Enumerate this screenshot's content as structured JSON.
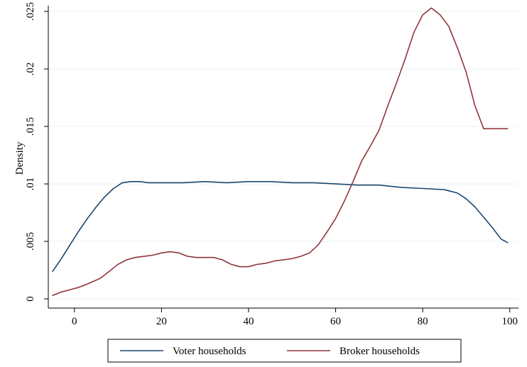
{
  "chart_data": {
    "type": "line",
    "title": "",
    "xlabel": "",
    "ylabel": "Density",
    "xlim": [
      -6,
      102
    ],
    "ylim": [
      -0.0008,
      0.0255
    ],
    "xticks": [
      0,
      20,
      40,
      60,
      80,
      100
    ],
    "xtick_labels": [
      "0",
      "20",
      "40",
      "60",
      "80",
      "100"
    ],
    "yticks": [
      0,
      0.005,
      0.01,
      0.015,
      0.02,
      0.025
    ],
    "ytick_labels": [
      "0",
      ".005",
      ".01",
      ".015",
      ".02",
      ".025"
    ],
    "grid": true,
    "legend_position": "bottom",
    "series": [
      {
        "name": "Voter households",
        "color": "#1a476f",
        "x": [
          -5,
          -3,
          -1,
          1,
          3,
          5,
          7,
          9,
          11,
          13,
          15,
          17,
          19,
          21,
          25,
          30,
          35,
          40,
          45,
          50,
          55,
          60,
          65,
          70,
          75,
          80,
          85,
          88,
          90,
          92,
          94,
          96,
          98,
          99.5
        ],
        "y": [
          0.0024,
          0.0035,
          0.0047,
          0.0059,
          0.007,
          0.008,
          0.0089,
          0.0096,
          0.0101,
          0.0102,
          0.0102,
          0.0101,
          0.0101,
          0.0101,
          0.0101,
          0.0102,
          0.0101,
          0.0102,
          0.0102,
          0.0101,
          0.0101,
          0.01,
          0.0099,
          0.0099,
          0.0097,
          0.0096,
          0.0095,
          0.0092,
          0.0087,
          0.008,
          0.0071,
          0.0062,
          0.0052,
          0.0049
        ]
      },
      {
        "name": "Broker households",
        "color": "#90353b",
        "x": [
          -5,
          -3,
          -1,
          1,
          3,
          6,
          8,
          10,
          12,
          14,
          16,
          18,
          20,
          22,
          24,
          26,
          28,
          30,
          32,
          34,
          36,
          38,
          40,
          42,
          44,
          46,
          48,
          50,
          52,
          54,
          56,
          58,
          60,
          62,
          64,
          66,
          68,
          70,
          72,
          74,
          76,
          78,
          80,
          82,
          84,
          86,
          88,
          90,
          92,
          94,
          96,
          98,
          99.5
        ],
        "y": [
          0.0003,
          0.0006,
          0.0008,
          0.001,
          0.0013,
          0.0018,
          0.0024,
          0.003,
          0.0034,
          0.0036,
          0.0037,
          0.0038,
          0.004,
          0.0041,
          0.004,
          0.0037,
          0.0036,
          0.0036,
          0.0036,
          0.0034,
          0.003,
          0.0028,
          0.0028,
          0.003,
          0.0031,
          0.0033,
          0.0034,
          0.0035,
          0.0037,
          0.004,
          0.0047,
          0.0058,
          0.007,
          0.0085,
          0.0102,
          0.012,
          0.0133,
          0.0147,
          0.0168,
          0.0188,
          0.0209,
          0.0232,
          0.0247,
          0.0253,
          0.0247,
          0.0237,
          0.0218,
          0.0197,
          0.0168,
          0.0148,
          0.0148,
          0.0148,
          0.0148
        ]
      }
    ]
  }
}
